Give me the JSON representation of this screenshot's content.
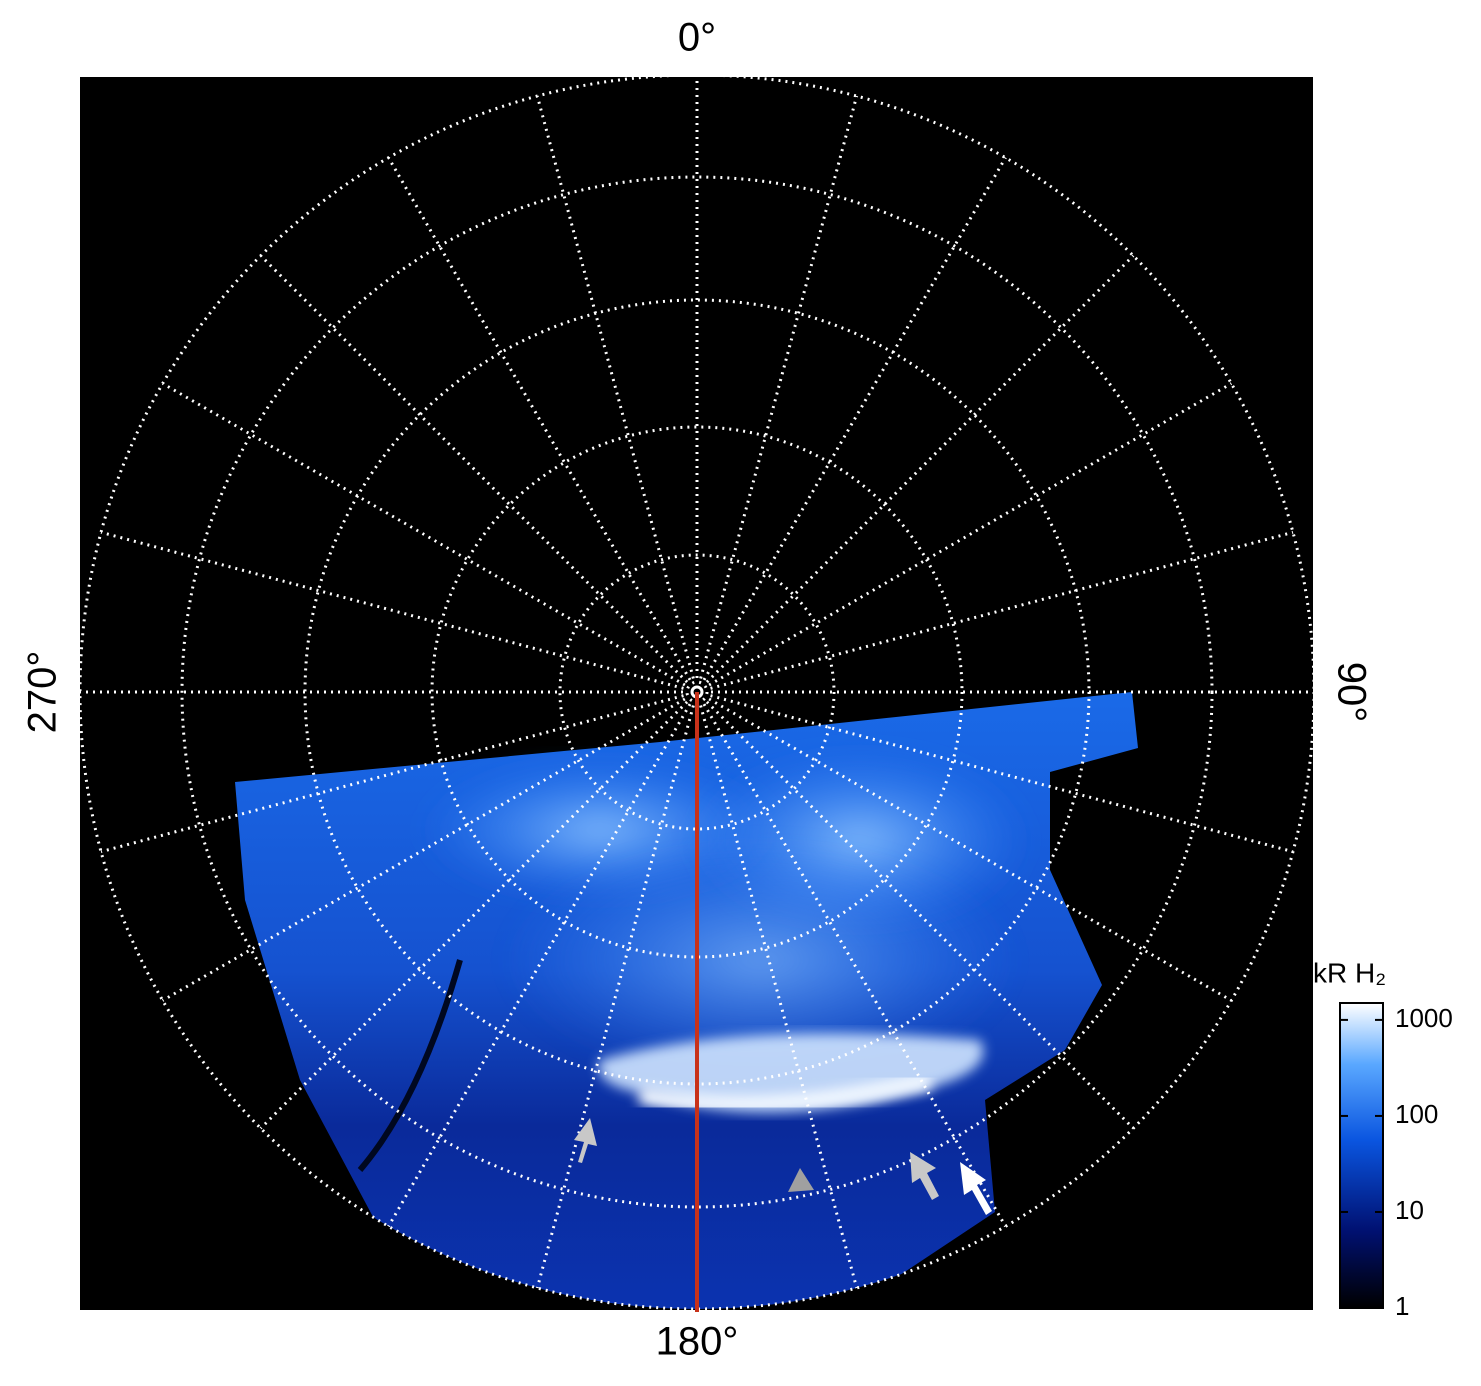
{
  "chart_data": {
    "type": "polar-image",
    "theta_ticks": [
      {
        "value": 0,
        "label": "0°"
      },
      {
        "value": 90,
        "label": "90°"
      },
      {
        "value": 180,
        "label": "180°"
      },
      {
        "value": 270,
        "label": "270°"
      }
    ],
    "colorbar": {
      "label": "kR H₂",
      "log_scale": true,
      "lim": [
        1,
        1500
      ],
      "ticks": [
        1,
        10,
        100,
        1000
      ]
    }
  }
}
